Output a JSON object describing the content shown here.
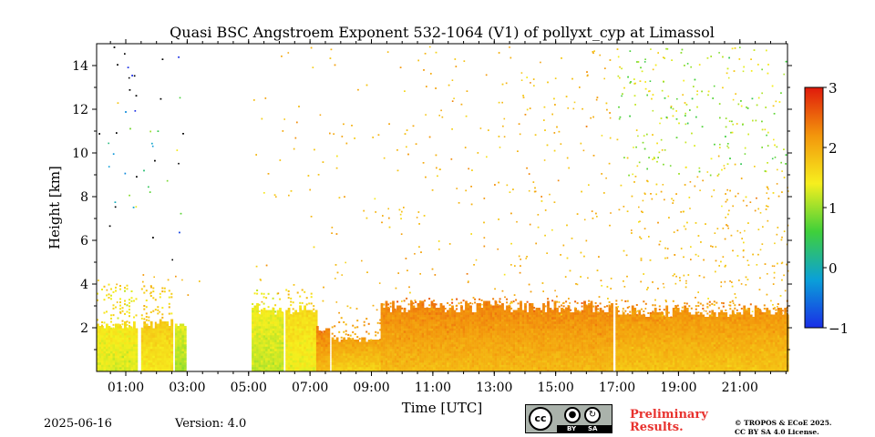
{
  "chart_data": {
    "type": "heatmap",
    "title": "Quasi BSC Angstroem Exponent 532-1064 (V1) of pollyxt_cyp at Limassol",
    "xlabel": "Time [UTC]",
    "ylabel": "Height [km]",
    "x_range_hours": [
      0.05,
      22.55
    ],
    "y_range_km": [
      0,
      15
    ],
    "x_ticks": [
      "01:00",
      "03:00",
      "05:00",
      "07:00",
      "09:00",
      "11:00",
      "13:00",
      "15:00",
      "17:00",
      "19:00",
      "21:00"
    ],
    "x_tick_hours": [
      1,
      3,
      5,
      7,
      9,
      11,
      13,
      15,
      17,
      19,
      21
    ],
    "y_ticks": [
      2,
      4,
      6,
      8,
      10,
      12,
      14
    ],
    "colorbar": {
      "range": [
        -1,
        3
      ],
      "ticks": [
        3,
        2,
        1,
        0,
        -1
      ],
      "tick_labels": [
        "3",
        "2",
        "1",
        "0",
        "−1"
      ],
      "colormap": "jet-like",
      "colors": [
        "#1a2ee6",
        "#0aa0d8",
        "#3fd03a",
        "#f6ef1e",
        "#f3960c",
        "#e01a0c"
      ]
    },
    "segments": [
      {
        "start_h": 0.05,
        "end_h": 1.35,
        "top_km": 2.1,
        "mean_ae": 1.5,
        "sparse_top_km": 4.0
      },
      {
        "start_h": 1.5,
        "end_h": 2.5,
        "top_km": 2.1,
        "mean_ae": 1.7,
        "sparse_top_km": 3.9
      },
      {
        "start_h": 2.6,
        "end_h": 2.9,
        "top_km": 2.0,
        "mean_ae": 1.3,
        "sparse_top_km": 2.0
      },
      {
        "start_h": 5.1,
        "end_h": 6.1,
        "top_km": 2.8,
        "mean_ae": 1.4,
        "sparse_top_km": 3.7
      },
      {
        "start_h": 6.2,
        "end_h": 7.2,
        "top_km": 2.8,
        "mean_ae": 1.6,
        "sparse_top_km": 3.7
      },
      {
        "start_h": 7.2,
        "end_h": 7.6,
        "top_km": 1.8,
        "mean_ae": 2.3,
        "sparse_top_km": 2.0
      },
      {
        "start_h": 7.7,
        "end_h": 9.3,
        "top_km": 1.4,
        "mean_ae": 2.1,
        "sparse_top_km": 2.5
      },
      {
        "start_h": 9.3,
        "end_h": 16.8,
        "top_km": 2.9,
        "mean_ae": 2.3,
        "sparse_top_km": 3.3
      },
      {
        "start_h": 16.95,
        "end_h": 22.55,
        "top_km": 2.7,
        "mean_ae": 2.2,
        "sparse_top_km": 3.2
      }
    ],
    "gaps_h": [
      [
        1.35,
        1.5
      ],
      [
        2.9,
        5.1
      ],
      [
        16.8,
        16.95
      ]
    ]
  },
  "footer": {
    "date": "2025-06-16",
    "version": "Version: 4.0",
    "preliminary_line1": "Preliminary",
    "preliminary_line2": "Results.",
    "license_line1": "© TROPOS & ECoE 2025.",
    "license_line2": "CC BY SA 4.0 License.",
    "cc_logo": {
      "icon": "cc-license-icon",
      "label": "cc",
      "by": "BY",
      "sa": "SA"
    }
  }
}
